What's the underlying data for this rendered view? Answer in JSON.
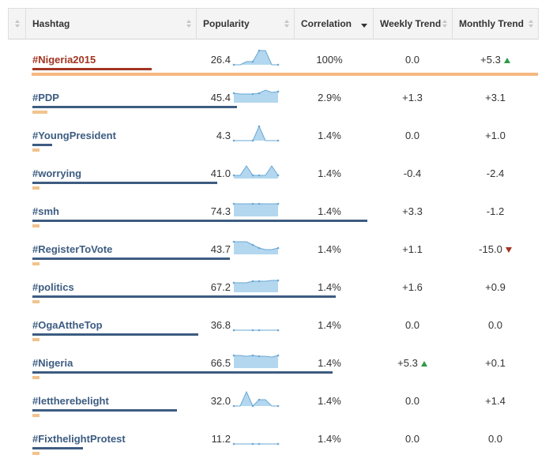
{
  "header": {
    "hashtag": "Hashtag",
    "popularity": "Popularity",
    "correlation": "Correlation",
    "weekly": "Weekly Trend",
    "monthly": "Monthly Trend"
  },
  "colors": {
    "tag_default": "#3d5c81",
    "tag_selected": "#a33421",
    "popularity_bar": "#3d5c81",
    "correlation_bar": "#f2c38e",
    "trend_up": "#2f9a48",
    "trend_down": "#a33421",
    "sparkline_fill": "#b3d7ef",
    "sparkline_line": "#6aa8d4"
  },
  "rows": [
    {
      "tag": "#Nigeria2015",
      "popularity": "26.4",
      "correlation": "100%",
      "weekly": "0.0",
      "monthly": "+5.3",
      "weekly_dir": "",
      "monthly_dir": "up",
      "selected": true,
      "pop_frac": 0.264,
      "corr_frac": 1.0,
      "spark": [
        0,
        0,
        2,
        2,
        9,
        9,
        0,
        0
      ]
    },
    {
      "tag": "#PDP",
      "popularity": "45.4",
      "correlation": "2.9%",
      "weekly": "+1.3",
      "monthly": "+3.1",
      "weekly_dir": "",
      "monthly_dir": "",
      "selected": false,
      "pop_frac": 0.454,
      "corr_frac": 0.029,
      "spark": [
        6,
        5.5,
        5.5,
        5.5,
        6,
        8,
        6.5,
        7
      ]
    },
    {
      "tag": "#YoungPresident",
      "popularity": "4.3",
      "correlation": "1.4%",
      "weekly": "0.0",
      "monthly": "+1.0",
      "weekly_dir": "",
      "monthly_dir": "",
      "selected": false,
      "pop_frac": 0.043,
      "corr_frac": 0.014,
      "spark": [
        0,
        0,
        0,
        0,
        9,
        0,
        0,
        0
      ]
    },
    {
      "tag": "#worrying",
      "popularity": "41.0",
      "correlation": "1.4%",
      "weekly": "-0.4",
      "monthly": "-2.4",
      "weekly_dir": "",
      "monthly_dir": "",
      "selected": false,
      "pop_frac": 0.41,
      "corr_frac": 0.014,
      "spark": [
        2,
        2,
        8,
        2,
        2,
        2,
        8,
        2
      ]
    },
    {
      "tag": "#smh",
      "popularity": "74.3",
      "correlation": "1.4%",
      "weekly": "+3.3",
      "monthly": "-1.2",
      "weekly_dir": "",
      "monthly_dir": "",
      "selected": false,
      "pop_frac": 0.743,
      "corr_frac": 0.014,
      "spark": [
        8,
        8,
        8,
        8,
        8,
        8,
        8,
        8
      ]
    },
    {
      "tag": "#RegisterToVote",
      "popularity": "43.7",
      "correlation": "1.4%",
      "weekly": "+1.1",
      "monthly": "-15.0",
      "weekly_dir": "",
      "monthly_dir": "down",
      "selected": false,
      "pop_frac": 0.437,
      "corr_frac": 0.014,
      "spark": [
        8,
        8,
        8,
        6,
        4,
        3,
        3,
        4
      ]
    },
    {
      "tag": "#politics",
      "popularity": "67.2",
      "correlation": "1.4%",
      "weekly": "+1.6",
      "monthly": "+0.9",
      "weekly_dir": "",
      "monthly_dir": "",
      "selected": false,
      "pop_frac": 0.672,
      "corr_frac": 0.014,
      "spark": [
        6,
        6,
        6,
        7,
        7,
        7,
        7.5,
        7.5
      ]
    },
    {
      "tag": "#OgaAttheTop",
      "popularity": "36.8",
      "correlation": "1.4%",
      "weekly": "0.0",
      "monthly": "0.0",
      "weekly_dir": "",
      "monthly_dir": "",
      "selected": false,
      "pop_frac": 0.368,
      "corr_frac": 0.014,
      "spark": [
        0,
        0,
        0,
        0,
        0,
        0,
        0,
        0
      ]
    },
    {
      "tag": "#Nigeria",
      "popularity": "66.5",
      "correlation": "1.4%",
      "weekly": "+5.3",
      "monthly": "+0.1",
      "weekly_dir": "up",
      "monthly_dir": "",
      "selected": false,
      "pop_frac": 0.665,
      "corr_frac": 0.014,
      "spark": [
        8,
        8,
        7.5,
        8,
        7.5,
        7.5,
        7,
        8
      ]
    },
    {
      "tag": "#lettherebelight",
      "popularity": "32.0",
      "correlation": "1.4%",
      "weekly": "0.0",
      "monthly": "+1.4",
      "weekly_dir": "",
      "monthly_dir": "",
      "selected": false,
      "pop_frac": 0.32,
      "corr_frac": 0.014,
      "spark": [
        0,
        0,
        9,
        0,
        4,
        4,
        0,
        0
      ]
    },
    {
      "tag": "#FixthelightProtest",
      "popularity": "11.2",
      "correlation": "1.4%",
      "weekly": "0.0",
      "monthly": "0.0",
      "weekly_dir": "",
      "monthly_dir": "",
      "selected": false,
      "pop_frac": 0.112,
      "corr_frac": 0.014,
      "spark": [
        0,
        0,
        0,
        0,
        0,
        0,
        0,
        0
      ]
    }
  ]
}
